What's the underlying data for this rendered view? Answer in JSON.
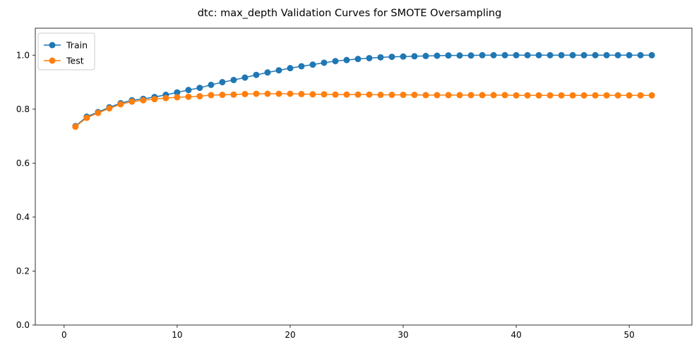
{
  "chart_data": {
    "type": "line",
    "title": "dtc: max_depth Validation Curves for SMOTE Oversampling",
    "xlabel": "",
    "ylabel": "",
    "xlim": [
      -2.55,
      55.55
    ],
    "ylim": [
      0,
      1.1
    ],
    "xticks": [
      0,
      10,
      20,
      30,
      40,
      50
    ],
    "yticks": [
      0.0,
      0.2,
      0.4,
      0.6,
      0.8,
      1.0
    ],
    "xtick_labels": [
      "0",
      "10",
      "20",
      "30",
      "40",
      "50"
    ],
    "ytick_labels": [
      "0.0",
      "0.2",
      "0.4",
      "0.6",
      "0.8",
      "1.0"
    ],
    "grid": false,
    "legend_position": "top-left",
    "x": [
      1,
      2,
      3,
      4,
      5,
      6,
      7,
      8,
      9,
      10,
      11,
      12,
      13,
      14,
      15,
      16,
      17,
      18,
      19,
      20,
      21,
      22,
      23,
      24,
      25,
      26,
      27,
      28,
      29,
      30,
      31,
      32,
      33,
      34,
      35,
      36,
      37,
      38,
      39,
      40,
      41,
      42,
      43,
      44,
      45,
      46,
      47,
      48,
      49,
      50,
      51,
      52
    ],
    "series": [
      {
        "name": "Train",
        "color": "#1f77b4",
        "values": [
          0.737,
          0.772,
          0.789,
          0.807,
          0.822,
          0.833,
          0.838,
          0.845,
          0.853,
          0.862,
          0.871,
          0.879,
          0.89,
          0.9,
          0.908,
          0.917,
          0.927,
          0.936,
          0.944,
          0.952,
          0.959,
          0.965,
          0.972,
          0.978,
          0.982,
          0.986,
          0.989,
          0.992,
          0.994,
          0.995,
          0.996,
          0.997,
          0.998,
          0.999,
          0.999,
          0.999,
          1.0,
          1.0,
          1.0,
          1.0,
          1.0,
          1.0,
          1.0,
          1.0,
          1.0,
          1.0,
          1.0,
          1.0,
          1.0,
          1.0,
          1.0,
          1.0
        ]
      },
      {
        "name": "Test",
        "color": "#ff7f0e",
        "values": [
          0.735,
          0.768,
          0.786,
          0.803,
          0.818,
          0.828,
          0.833,
          0.837,
          0.841,
          0.844,
          0.846,
          0.848,
          0.852,
          0.853,
          0.854,
          0.856,
          0.857,
          0.857,
          0.857,
          0.857,
          0.856,
          0.855,
          0.855,
          0.854,
          0.854,
          0.854,
          0.854,
          0.853,
          0.853,
          0.853,
          0.853,
          0.852,
          0.852,
          0.852,
          0.852,
          0.852,
          0.852,
          0.852,
          0.852,
          0.851,
          0.851,
          0.851,
          0.851,
          0.851,
          0.851,
          0.851,
          0.851,
          0.851,
          0.851,
          0.851,
          0.851,
          0.851
        ]
      }
    ]
  }
}
